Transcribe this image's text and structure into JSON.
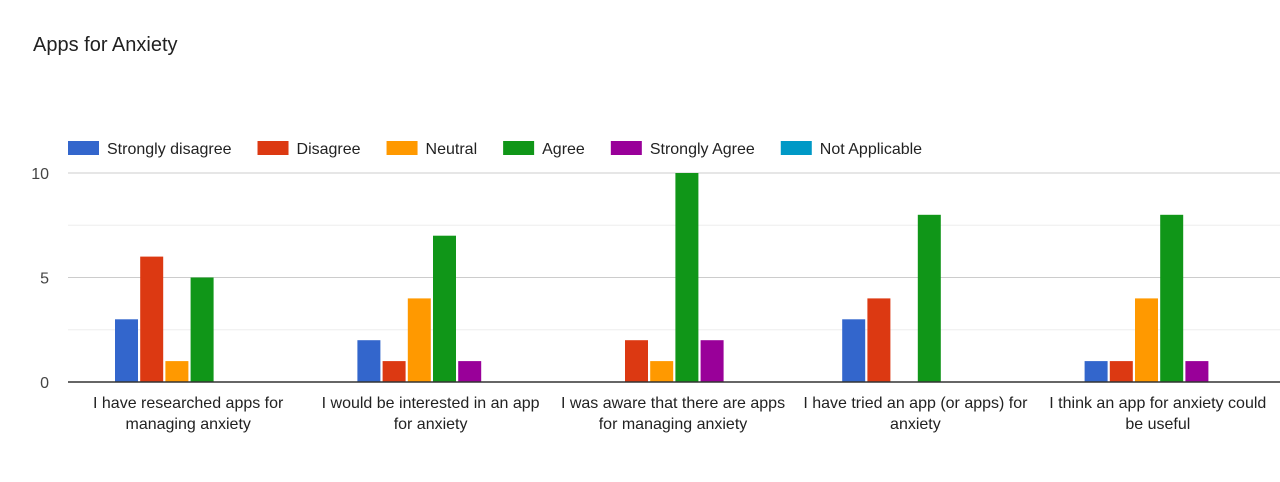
{
  "chart_data": {
    "type": "bar",
    "title": "Apps for Anxiety",
    "categories": [
      [
        "I have researched apps for",
        "managing anxiety"
      ],
      [
        "I would be interested in an app",
        "for anxiety"
      ],
      [
        "I was aware that there are apps",
        "for managing anxiety"
      ],
      [
        "I have tried an app (or apps) for",
        "anxiety"
      ],
      [
        "I think an app for anxiety could",
        "be useful"
      ]
    ],
    "series": [
      {
        "name": "Strongly disagree",
        "color": "#3366cc",
        "values": [
          3,
          2,
          0,
          3,
          1
        ]
      },
      {
        "name": "Disagree",
        "color": "#dc3912",
        "values": [
          6,
          1,
          2,
          4,
          1
        ]
      },
      {
        "name": "Neutral",
        "color": "#ff9900",
        "values": [
          1,
          4,
          1,
          0,
          4
        ]
      },
      {
        "name": "Agree",
        "color": "#109618",
        "values": [
          5,
          7,
          10,
          8,
          8
        ]
      },
      {
        "name": "Strongly Agree",
        "color": "#990099",
        "values": [
          0,
          1,
          2,
          0,
          1
        ]
      },
      {
        "name": "Not Applicable",
        "color": "#0099c6",
        "values": [
          0,
          0,
          0,
          0,
          0
        ]
      }
    ],
    "ylim": [
      0,
      10
    ],
    "yticks": [
      "0",
      "5",
      "10"
    ],
    "grid": true,
    "legend": "top"
  }
}
